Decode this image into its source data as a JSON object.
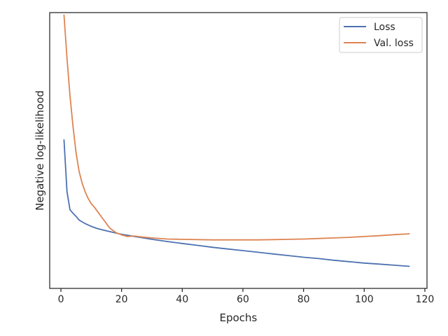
{
  "chart_data": {
    "type": "line",
    "title": "",
    "xlabel": "Epochs",
    "ylabel": "Negative log-likelihood",
    "xlim": [
      -3.7,
      120.7
    ],
    "ylim": [
      0,
      1
    ],
    "x_ticks": [
      0,
      20,
      40,
      60,
      80,
      100,
      120
    ],
    "x_tick_labels": [
      "0",
      "20",
      "40",
      "60",
      "80",
      "100",
      "120"
    ],
    "y_ticks_shown": false,
    "grid": false,
    "legend": {
      "placement": "top-right",
      "entries": [
        "Loss",
        "Val. loss"
      ]
    },
    "series": [
      {
        "name": "Loss",
        "color": "#4c72b0",
        "x": [
          1,
          2,
          3,
          4,
          5,
          6,
          7,
          8,
          9,
          10,
          12,
          15,
          20,
          25,
          30,
          35,
          40,
          45,
          50,
          55,
          60,
          65,
          70,
          75,
          80,
          85,
          90,
          95,
          100,
          105,
          110,
          115
        ],
        "values": [
          0.54,
          0.351,
          0.285,
          0.272,
          0.261,
          0.248,
          0.241,
          0.235,
          0.23,
          0.225,
          0.217,
          0.209,
          0.196,
          0.187,
          0.178,
          0.17,
          0.163,
          0.156,
          0.149,
          0.143,
          0.137,
          0.131,
          0.125,
          0.119,
          0.113,
          0.108,
          0.102,
          0.097,
          0.092,
          0.088,
          0.084,
          0.08
        ]
      },
      {
        "name": "Val. loss",
        "color": "#dd8452",
        "x": [
          1,
          2,
          3,
          4,
          5,
          6,
          7,
          8,
          9,
          10,
          11,
          12,
          14,
          16,
          18,
          20,
          22,
          24,
          27,
          30,
          35,
          40,
          45,
          50,
          55,
          60,
          65,
          70,
          75,
          80,
          85,
          90,
          95,
          100,
          105,
          110,
          115
        ],
        "values": [
          0.993,
          0.835,
          0.698,
          0.585,
          0.491,
          0.424,
          0.381,
          0.35,
          0.326,
          0.307,
          0.295,
          0.28,
          0.25,
          0.22,
          0.203,
          0.194,
          0.188,
          0.19,
          0.186,
          0.183,
          0.179,
          0.178,
          0.177,
          0.176,
          0.176,
          0.176,
          0.176,
          0.177,
          0.178,
          0.179,
          0.181,
          0.183,
          0.185,
          0.188,
          0.191,
          0.195,
          0.198
        ]
      }
    ]
  }
}
